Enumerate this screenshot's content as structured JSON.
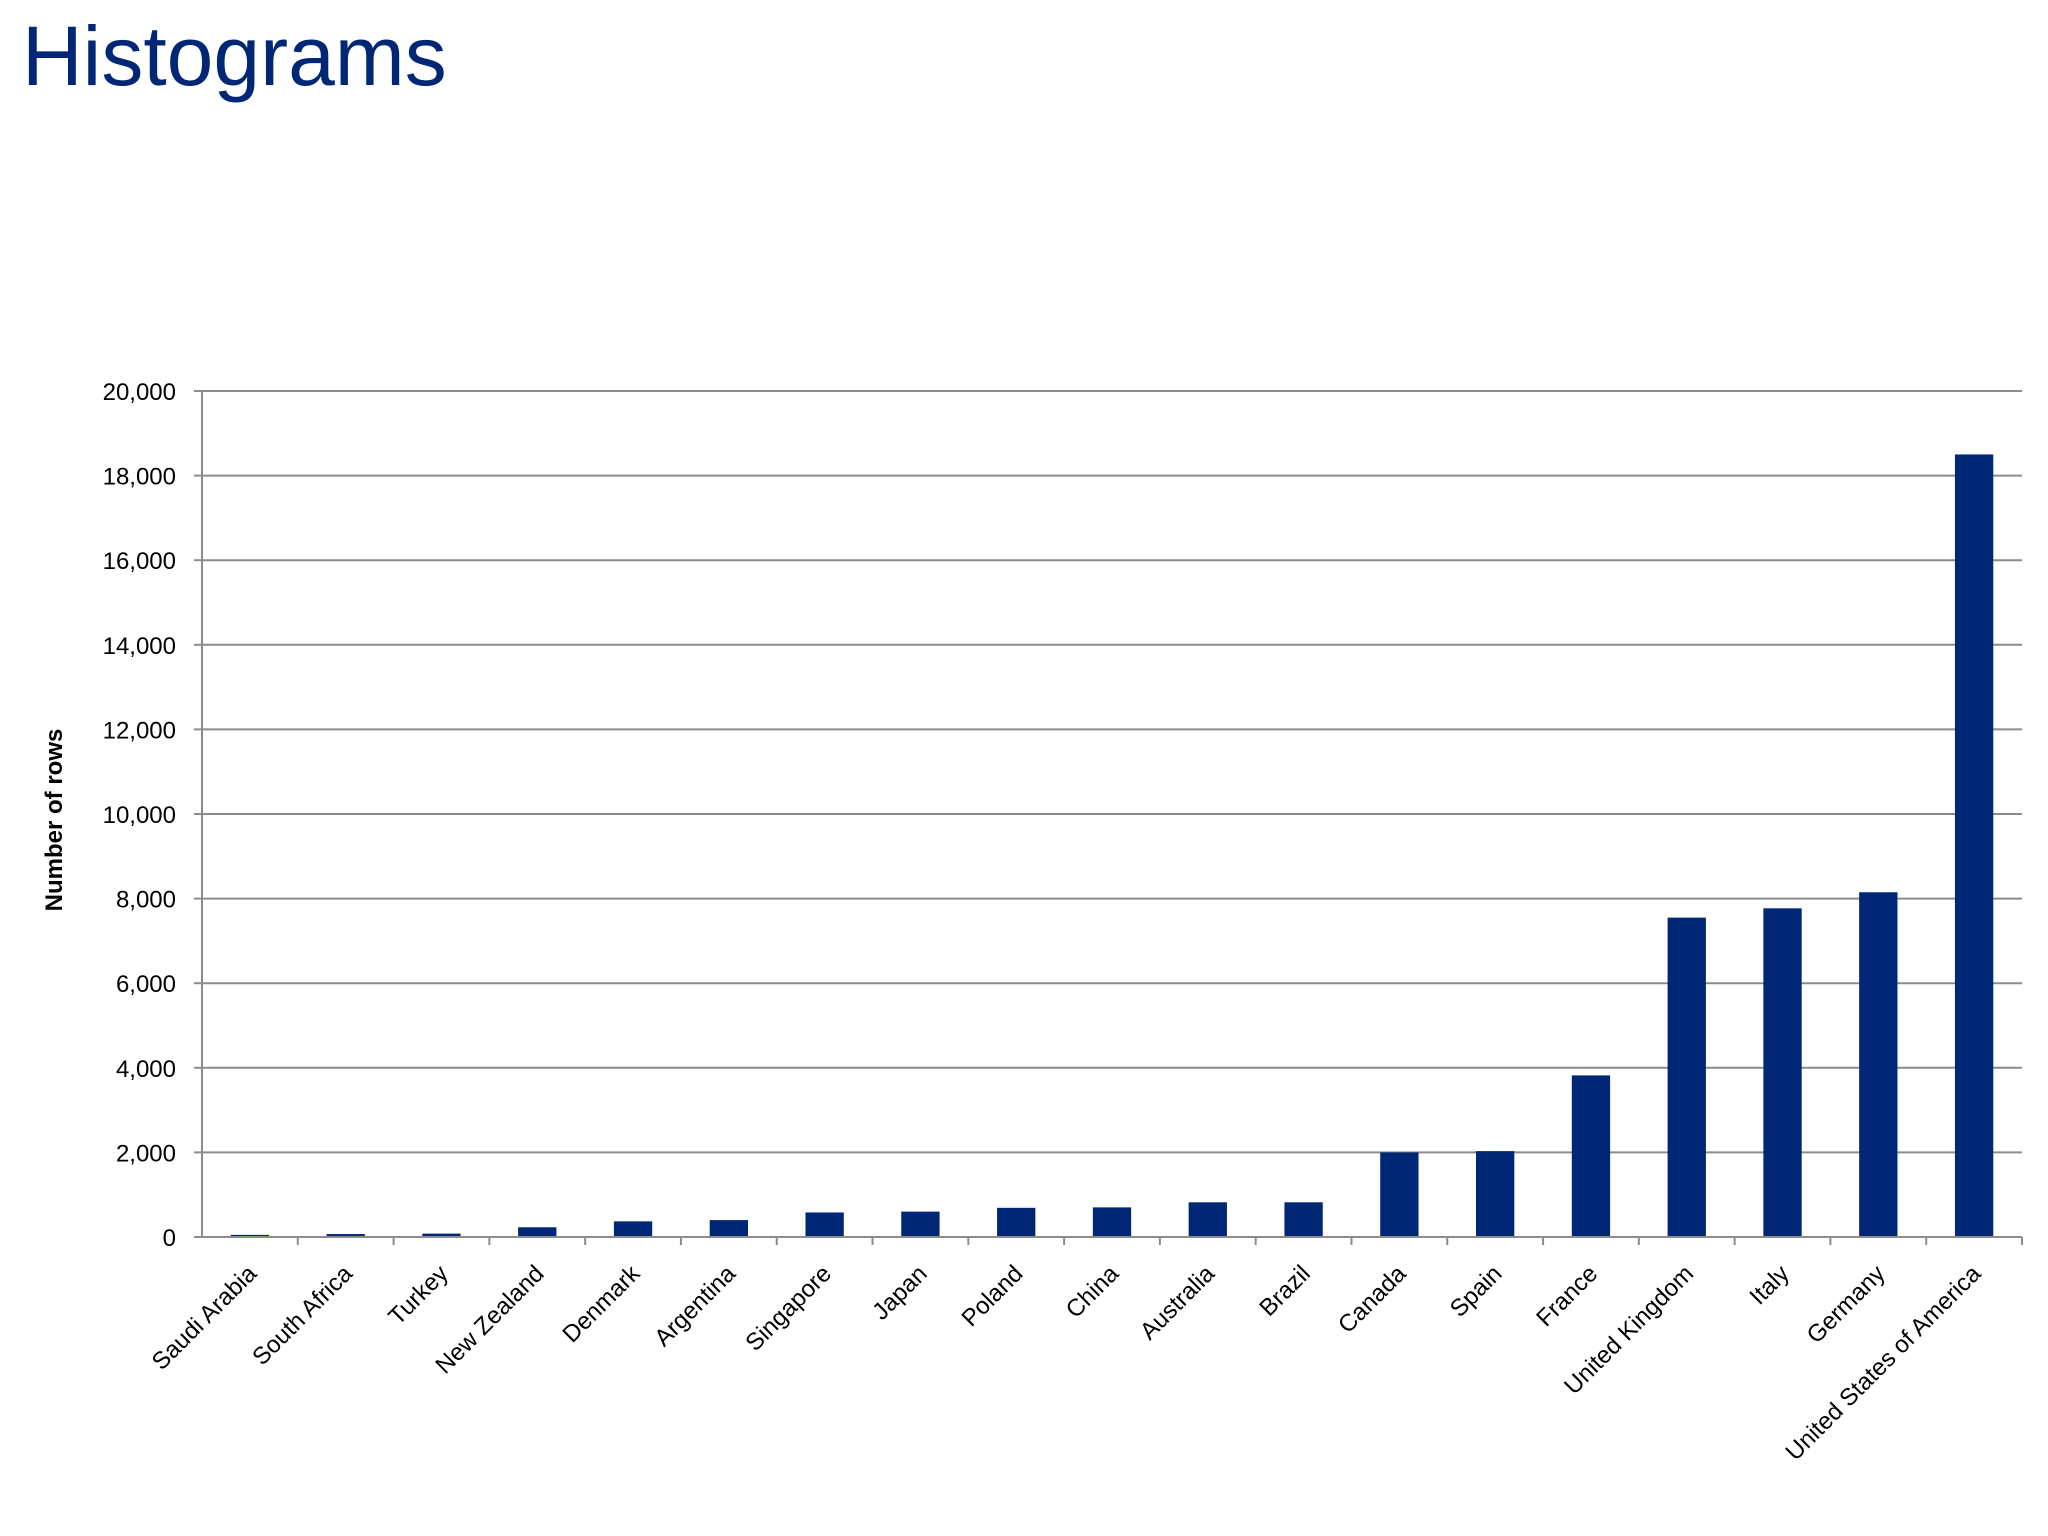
{
  "page": {
    "title": "Histograms"
  },
  "chart_data": {
    "type": "bar",
    "ylabel": "Number of rows",
    "xlabel": "",
    "ylim": [
      0,
      20000
    ],
    "yticks": [
      "0",
      "2,000",
      "4,000",
      "6,000",
      "8,000",
      "10,000",
      "12,000",
      "14,000",
      "16,000",
      "18,000",
      "20,000"
    ],
    "grid": true,
    "legend": "none",
    "bar_color": "#002776",
    "categories": [
      "Saudi Arabia",
      "South Africa",
      "Turkey",
      "New Zealand",
      "Denmark",
      "Argentina",
      "Singapore",
      "Japan",
      "Poland",
      "China",
      "Australia",
      "Brazil",
      "Canada",
      "Spain",
      "France",
      "United Kingdom",
      "Italy",
      "Germany",
      "United States of America"
    ],
    "values": [
      50,
      70,
      80,
      230,
      370,
      400,
      580,
      600,
      690,
      700,
      820,
      820,
      2000,
      2030,
      3820,
      7550,
      7770,
      8150,
      18500
    ]
  }
}
